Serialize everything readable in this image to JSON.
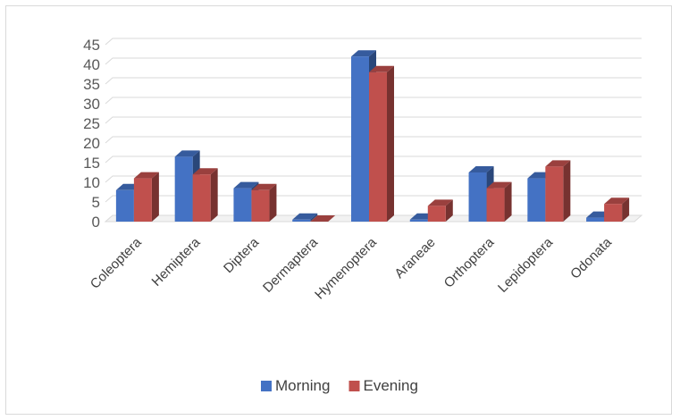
{
  "chart_data": {
    "type": "bar",
    "title": "",
    "xlabel": "",
    "ylabel": "",
    "categories": [
      "Coleoptera",
      "Hemiptera",
      "Diptera",
      "Dermaptera",
      "Hymenoptera",
      "Araneae",
      "Orthoptera",
      "Lepidoptera",
      "Odonata"
    ],
    "series": [
      {
        "name": "Morning",
        "color": "#4472c4",
        "values": [
          8,
          16.5,
          8.5,
          0.5,
          42,
          0.5,
          12.5,
          11,
          1
        ]
      },
      {
        "name": "Evening",
        "color": "#c0504d",
        "values": [
          11,
          12,
          8,
          0,
          38,
          4,
          8.5,
          14,
          4.5
        ]
      }
    ],
    "y_ticks": [
      "0",
      "5",
      "10",
      "15",
      "20",
      "25",
      "30",
      "35",
      "40",
      "45"
    ],
    "ylim": [
      0,
      45
    ],
    "grid": true,
    "legend": "bottom",
    "style": "3d-clustered-column"
  }
}
